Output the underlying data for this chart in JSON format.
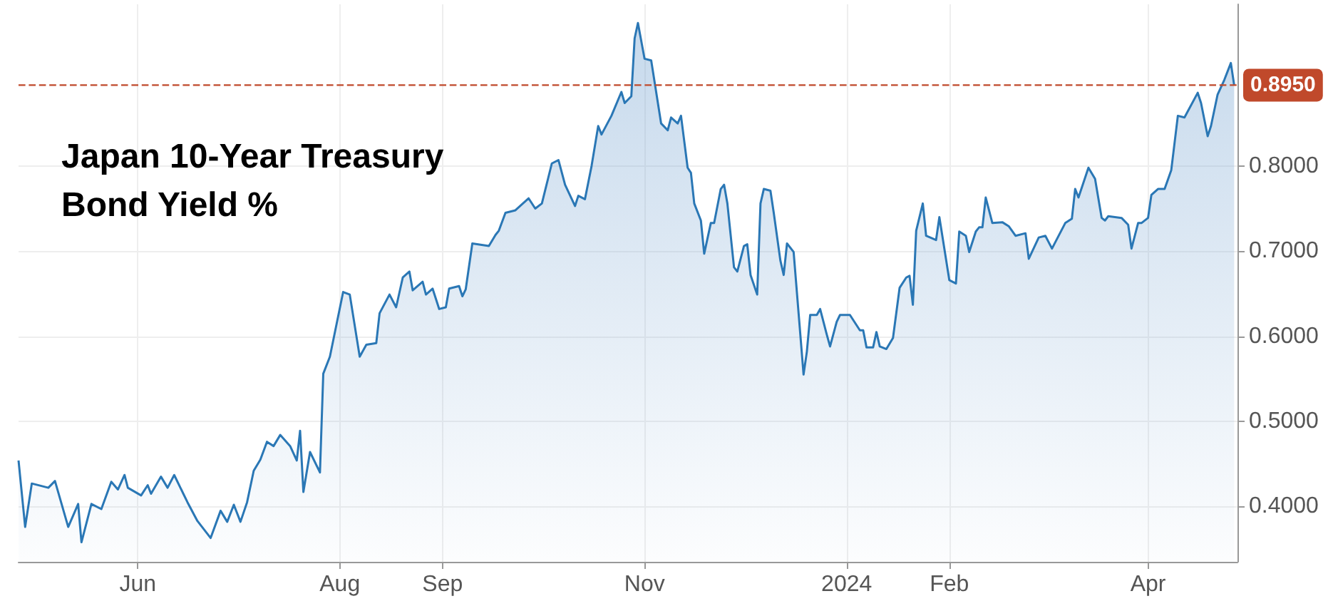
{
  "chart_data": {
    "type": "area",
    "title": "Japan 10-Year Treasury Bond Yield %",
    "color": "#2a77b5",
    "x": [
      "2023-04-26",
      "2023-04-28",
      "2023-04-30",
      "2023-05-05",
      "2023-05-07",
      "2023-05-11",
      "2023-05-14",
      "2023-05-15",
      "2023-05-18",
      "2023-05-21",
      "2023-05-24",
      "2023-05-26",
      "2023-05-28",
      "2023-05-29",
      "2023-06-02",
      "2023-06-04",
      "2023-06-05",
      "2023-06-08",
      "2023-06-10",
      "2023-06-12",
      "2023-06-16",
      "2023-06-19",
      "2023-06-23",
      "2023-06-26",
      "2023-06-28",
      "2023-06-30",
      "2023-07-02",
      "2023-07-04",
      "2023-07-06",
      "2023-07-08",
      "2023-07-10",
      "2023-07-12",
      "2023-07-14",
      "2023-07-17",
      "2023-07-19",
      "2023-07-20",
      "2023-07-21",
      "2023-07-23",
      "2023-07-26",
      "2023-07-27",
      "2023-07-29",
      "2023-08-02",
      "2023-08-04",
      "2023-08-07",
      "2023-08-09",
      "2023-08-12",
      "2023-08-13",
      "2023-08-16",
      "2023-08-18",
      "2023-08-20",
      "2023-08-22",
      "2023-08-23",
      "2023-08-26",
      "2023-08-27",
      "2023-08-29",
      "2023-08-31",
      "2023-09-02",
      "2023-09-03",
      "2023-09-06",
      "2023-09-07",
      "2023-09-08",
      "2023-09-10",
      "2023-09-15",
      "2023-09-17",
      "2023-09-18",
      "2023-09-20",
      "2023-09-23",
      "2023-09-27",
      "2023-09-29",
      "2023-10-01",
      "2023-10-04",
      "2023-10-06",
      "2023-10-08",
      "2023-10-11",
      "2023-10-12",
      "2023-10-14",
      "2023-10-16",
      "2023-10-18",
      "2023-10-19",
      "2023-10-22",
      "2023-10-25",
      "2023-10-26",
      "2023-10-28",
      "2023-10-29",
      "2023-10-30",
      "2023-11-01",
      "2023-11-03",
      "2023-11-06",
      "2023-11-08",
      "2023-11-09",
      "2023-11-11",
      "2023-11-12",
      "2023-11-14",
      "2023-11-15",
      "2023-11-16",
      "2023-11-18",
      "2023-11-19",
      "2023-11-21",
      "2023-11-22",
      "2023-11-24",
      "2023-11-25",
      "2023-11-26",
      "2023-11-28",
      "2023-11-29",
      "2023-12-01",
      "2023-12-02",
      "2023-12-03",
      "2023-12-05",
      "2023-12-06",
      "2023-12-07",
      "2023-12-09",
      "2023-12-10",
      "2023-12-12",
      "2023-12-13",
      "2023-12-14",
      "2023-12-16",
      "2023-12-19",
      "2023-12-20",
      "2023-12-21",
      "2023-12-23",
      "2023-12-24",
      "2023-12-26",
      "2023-12-27",
      "2023-12-29",
      "2023-12-30",
      "2024-01-02",
      "2024-01-05",
      "2024-01-06",
      "2024-01-07",
      "2024-01-09",
      "2024-01-10",
      "2024-01-11",
      "2024-01-13",
      "2024-01-15",
      "2024-01-17",
      "2024-01-19",
      "2024-01-20",
      "2024-01-21",
      "2024-01-22",
      "2024-01-24",
      "2024-01-25",
      "2024-01-28",
      "2024-01-29",
      "2024-02-01",
      "2024-02-03",
      "2024-02-04",
      "2024-02-06",
      "2024-02-07",
      "2024-02-09",
      "2024-02-10",
      "2024-02-11",
      "2024-02-12",
      "2024-02-14",
      "2024-02-17",
      "2024-02-19",
      "2024-02-21",
      "2024-02-24",
      "2024-02-25",
      "2024-02-28",
      "2024-03-01",
      "2024-03-03",
      "2024-03-07",
      "2024-03-09",
      "2024-03-10",
      "2024-03-11",
      "2024-03-14",
      "2024-03-16",
      "2024-03-18",
      "2024-03-19",
      "2024-03-20",
      "2024-03-24",
      "2024-03-26",
      "2024-03-27",
      "2024-03-29",
      "2024-03-30",
      "2024-04-01",
      "2024-04-02",
      "2024-04-04",
      "2024-04-06",
      "2024-04-08",
      "2024-04-10",
      "2024-04-12",
      "2024-04-16",
      "2024-04-17",
      "2024-04-19",
      "2024-04-20",
      "2024-04-22",
      "2024-04-24",
      "2024-04-26",
      "2024-04-27"
    ],
    "values": [
      0.454,
      0.376,
      0.427,
      0.422,
      0.43,
      0.376,
      0.403,
      0.358,
      0.403,
      0.397,
      0.429,
      0.42,
      0.437,
      0.422,
      0.413,
      0.425,
      0.415,
      0.435,
      0.422,
      0.437,
      0.405,
      0.383,
      0.363,
      0.395,
      0.382,
      0.402,
      0.382,
      0.405,
      0.442,
      0.455,
      0.476,
      0.471,
      0.484,
      0.471,
      0.454,
      0.489,
      0.417,
      0.464,
      0.44,
      0.556,
      0.576,
      0.652,
      0.649,
      0.576,
      0.59,
      0.592,
      0.627,
      0.649,
      0.634,
      0.669,
      0.676,
      0.654,
      0.664,
      0.649,
      0.656,
      0.632,
      0.634,
      0.656,
      0.659,
      0.647,
      0.655,
      0.709,
      0.706,
      0.719,
      0.724,
      0.745,
      0.748,
      0.762,
      0.75,
      0.756,
      0.803,
      0.807,
      0.778,
      0.753,
      0.765,
      0.761,
      0.8,
      0.847,
      0.837,
      0.859,
      0.887,
      0.874,
      0.882,
      0.95,
      0.968,
      0.926,
      0.924,
      0.85,
      0.842,
      0.857,
      0.85,
      0.859,
      0.798,
      0.792,
      0.756,
      0.736,
      0.697,
      0.733,
      0.733,
      0.773,
      0.778,
      0.756,
      0.681,
      0.676,
      0.706,
      0.708,
      0.672,
      0.649,
      0.756,
      0.773,
      0.771,
      0.745,
      0.689,
      0.672,
      0.709,
      0.699,
      0.555,
      0.582,
      0.625,
      0.625,
      0.632,
      0.602,
      0.588,
      0.617,
      0.625,
      0.625,
      0.607,
      0.607,
      0.587,
      0.587,
      0.605,
      0.588,
      0.585,
      0.598,
      0.657,
      0.669,
      0.671,
      0.637,
      0.724,
      0.756,
      0.718,
      0.713,
      0.74,
      0.666,
      0.662,
      0.723,
      0.718,
      0.699,
      0.723,
      0.728,
      0.728,
      0.763,
      0.733,
      0.734,
      0.729,
      0.718,
      0.721,
      0.691,
      0.716,
      0.718,
      0.703,
      0.733,
      0.738,
      0.773,
      0.763,
      0.798,
      0.785,
      0.739,
      0.736,
      0.741,
      0.739,
      0.731,
      0.703,
      0.733,
      0.733,
      0.739,
      0.766,
      0.773,
      0.773,
      0.795,
      0.859,
      0.857,
      0.886,
      0.874,
      0.835,
      0.847,
      0.884,
      0.901,
      0.921,
      0.895
    ],
    "xlim": [
      "2023-04-26",
      "2024-04-28"
    ],
    "xticks": [
      {
        "value": "2023-06-01",
        "label": "Jun"
      },
      {
        "value": "2023-08-01",
        "label": "Aug"
      },
      {
        "value": "2023-09-01",
        "label": "Sep"
      },
      {
        "value": "2023-11-01",
        "label": "Nov"
      },
      {
        "value": "2024-01-01",
        "label": "2024"
      },
      {
        "value": "2024-02-01",
        "label": "Feb"
      },
      {
        "value": "2024-04-01",
        "label": "Apr"
      }
    ],
    "ylim": [
      0.335,
      0.99
    ],
    "yticks": [
      {
        "value": 0.4,
        "label": "0.4000"
      },
      {
        "value": 0.5,
        "label": "0.5000"
      },
      {
        "value": 0.6,
        "label": "0.6000"
      },
      {
        "value": 0.7,
        "label": "0.7000"
      },
      {
        "value": 0.8,
        "label": "0.8000"
      }
    ],
    "grid": true,
    "ref_lines": [
      {
        "axis": "y",
        "value": 0.895,
        "label": "0.8950",
        "color": "#c0492b",
        "line_style": "dashed"
      }
    ]
  }
}
